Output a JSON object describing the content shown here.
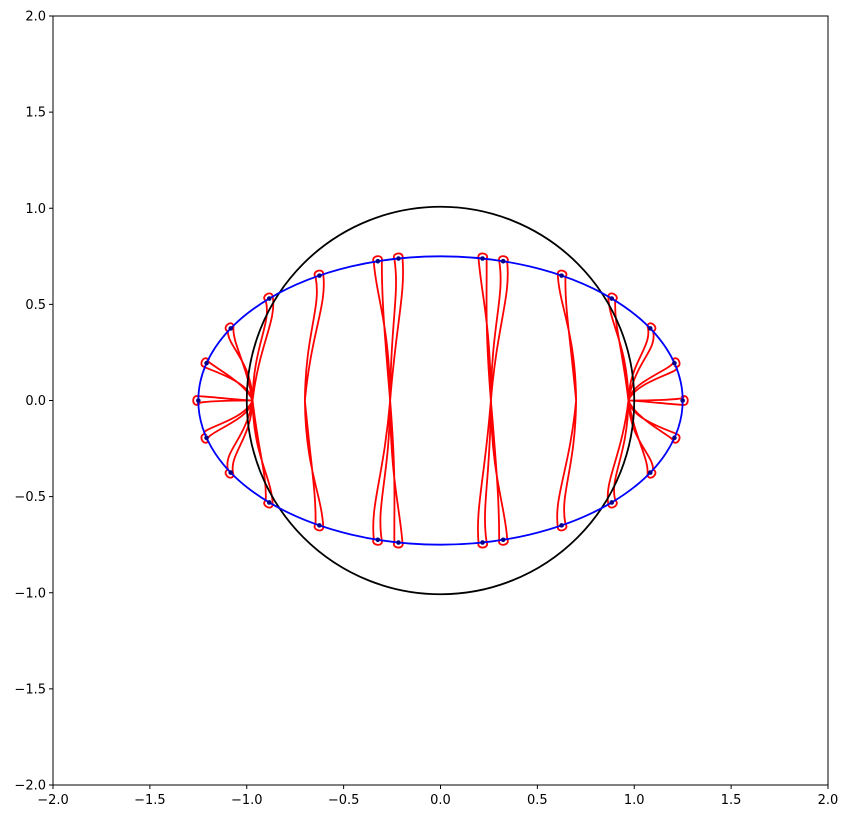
{
  "chart_data": {
    "type": "line",
    "title": "",
    "xlabel": "",
    "ylabel": "",
    "xlim": [
      -2.0,
      2.0
    ],
    "ylim": [
      -2.0,
      2.0
    ],
    "grid": false,
    "legend": "none",
    "x_ticks": [
      -2.0,
      -1.5,
      -1.0,
      -0.5,
      0.0,
      0.5,
      1.0,
      1.5,
      2.0
    ],
    "x_tick_labels": [
      "−2.0",
      "−1.5",
      "−1.0",
      "−0.5",
      "0.0",
      "0.5",
      "1.0",
      "1.5",
      "2.0"
    ],
    "y_ticks": [
      2.0,
      1.5,
      1.0,
      0.5,
      0.0,
      -0.5,
      -1.0,
      -1.5,
      -2.0
    ],
    "y_tick_labels": [
      "2.0",
      "1.5",
      "1.0",
      "0.5",
      "0.0",
      "−0.5",
      "−1.0",
      "−1.5",
      "−2.0"
    ],
    "unit_circle": {
      "center": [
        0,
        0
      ],
      "radius": 1.0,
      "color": "#000000"
    },
    "ellipse": {
      "center": [
        0,
        0
      ],
      "semi_axis_x": 1.25,
      "semi_axis_y": 0.75,
      "color": "#0000ff"
    },
    "convergence_points_x": [
      -0.97,
      -0.7,
      -0.26,
      0.26,
      0.7,
      0.97
    ],
    "ellipse_point_angles_deg": [
      0,
      15,
      30,
      45,
      60,
      75,
      80,
      100,
      105,
      120,
      135,
      150,
      165,
      180,
      195,
      210,
      225,
      240,
      255,
      260,
      280,
      285,
      300,
      315,
      330,
      345
    ],
    "point_color": "#00008b",
    "curve_color": "#ff0000"
  }
}
